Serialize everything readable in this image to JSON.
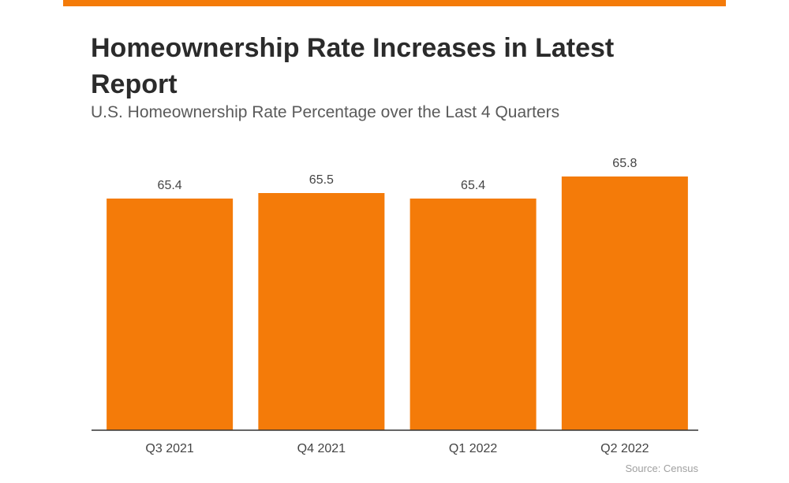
{
  "title": "Homeownership Rate Increases in Latest Report",
  "subtitle": "U.S. Homeownership Rate Percentage over the Last 4 Quarters",
  "source": "Source: Census",
  "colors": {
    "accent": "#f47b09",
    "bar": "#f47b09",
    "axis": "#333333",
    "label": "#444444"
  },
  "chart_data": {
    "type": "bar",
    "title": "Homeownership Rate Increases in Latest Report",
    "subtitle": "U.S. Homeownership Rate Percentage over the Last 4 Quarters",
    "categories": [
      "Q3 2021",
      "Q4 2021",
      "Q1 2022",
      "Q2 2022"
    ],
    "values": [
      65.4,
      65.5,
      65.4,
      65.8
    ],
    "value_labels": [
      "65.4",
      "65.5",
      "65.4",
      "65.8"
    ],
    "xlabel": "",
    "ylabel": "",
    "ylim": [
      61.2,
      66.1
    ],
    "grid": false,
    "legend": "none"
  }
}
